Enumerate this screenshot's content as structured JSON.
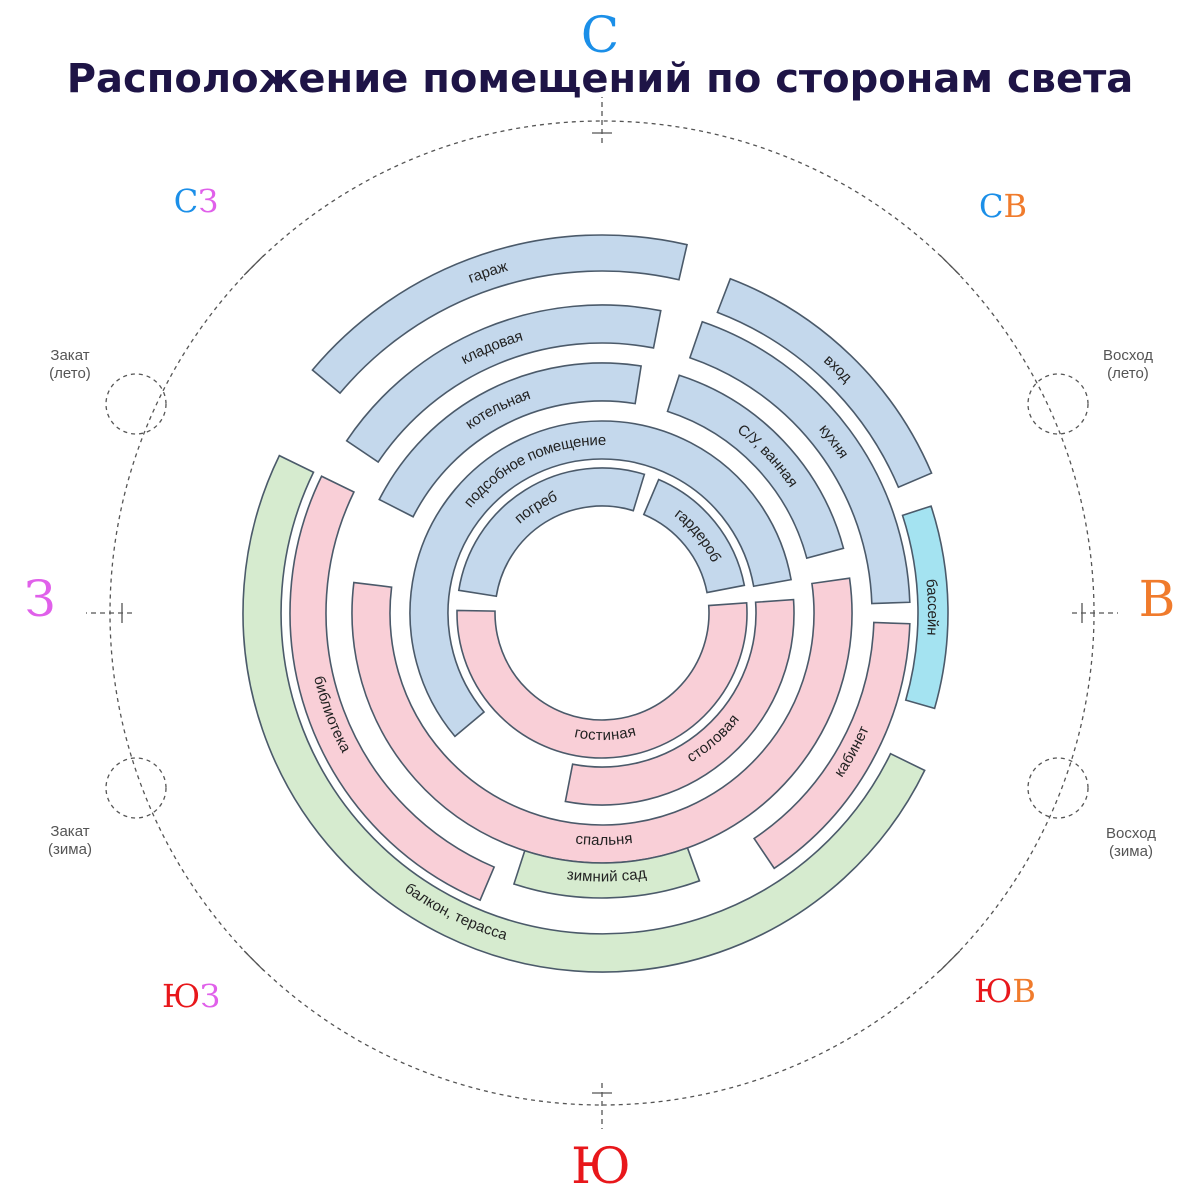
{
  "title": "Расположение помещений по сторонам света",
  "colors": {
    "blue_room": "#c4d8ec",
    "pink_room": "#f9cfd7",
    "green_room": "#d6ebcf",
    "pool_room": "#a4e3f1",
    "title": "#1e1446",
    "north": "#1b8fe8",
    "east": "#f07b2c",
    "south": "#e8171b",
    "west": "#e060ea"
  },
  "directions": {
    "north": "С",
    "south": "Ю",
    "east": "В",
    "west": "З",
    "northeast": [
      "С",
      "В"
    ],
    "northwest": [
      "С",
      "З"
    ],
    "southeast": [
      "Ю",
      "В"
    ],
    "southwest": [
      "Ю",
      "З"
    ]
  },
  "sun": {
    "sunrise_summer": [
      "Восход",
      "(лето)"
    ],
    "sunset_summer": [
      "Закат",
      "(лето)"
    ],
    "sunrise_winter": [
      "Восход",
      "(зима)"
    ],
    "sunset_winter": [
      "Закат",
      "(зима)"
    ]
  },
  "rooms": [
    {
      "label": "гараж",
      "ring": 5,
      "from": 310,
      "to": 13,
      "color": "blue"
    },
    {
      "label": "кладовая",
      "ring": 4,
      "from": 304,
      "to": 11,
      "color": "blue"
    },
    {
      "label": "котельная",
      "ring": 3,
      "from": 297,
      "to": 9,
      "color": "blue"
    },
    {
      "label": "подсобное помещение",
      "ring": 2,
      "from": 230,
      "to": 80,
      "color": "blue"
    },
    {
      "label": "погреб",
      "ring": 1,
      "from": 279,
      "to": 17,
      "color": "blue"
    },
    {
      "label": "гардероб",
      "ring": 1,
      "from": 23,
      "to": 79,
      "color": "blue"
    },
    {
      "label": "вход",
      "ring": 5,
      "from": 21,
      "to": 67,
      "color": "blue"
    },
    {
      "label": "кухня",
      "ring": 4,
      "from": 19,
      "to": 88,
      "color": "blue"
    },
    {
      "label": "С/У, ванная",
      "ring": 3,
      "from": 18,
      "to": 75,
      "color": "blue"
    },
    {
      "label": "бассейн",
      "ring": 6,
      "from": 72,
      "to": 106,
      "color": "pool"
    },
    {
      "label": "гостиная",
      "ring": 1,
      "from": 86,
      "to": 271,
      "color": "pink"
    },
    {
      "label": "столовая",
      "ring": 2,
      "from": 86,
      "to": 191,
      "color": "pink"
    },
    {
      "label": "спальня",
      "ring": 3,
      "from": 82,
      "to": 277,
      "color": "pink"
    },
    {
      "label": "кабинет",
      "ring": 5,
      "from": 92,
      "to": 146,
      "color": "pink"
    },
    {
      "label": "библиотека",
      "ring": 5,
      "from": 203,
      "to": 296,
      "color": "pink"
    },
    {
      "label": "зимний сад",
      "ring": 4,
      "from": 160,
      "to": 198,
      "color": "green"
    },
    {
      "label": "балкон, терасса",
      "ring": 6,
      "from": 116,
      "to": 296,
      "color": "green"
    }
  ]
}
